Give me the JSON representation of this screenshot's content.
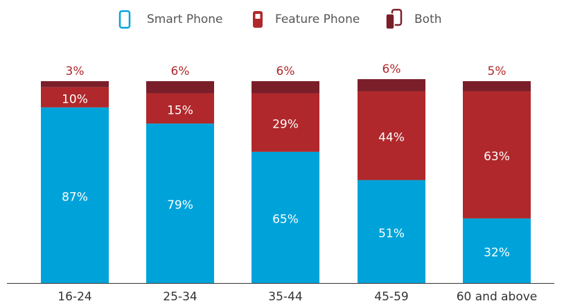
{
  "chart_data": {
    "type": "stacked_bar",
    "categories": [
      "16-24",
      "25-34",
      "35-44",
      "45-59",
      "60 and above"
    ],
    "ylim": [
      0,
      100
    ],
    "series": [
      {
        "name": "Smart Phone",
        "color": "#00a3d9",
        "values": [
          87,
          79,
          65,
          51,
          32
        ],
        "value_labels": [
          "87%",
          "79%",
          "65%",
          "51%",
          "32%"
        ]
      },
      {
        "name": "Feature Phone",
        "color": "#b0282b",
        "values": [
          10,
          15,
          29,
          44,
          63
        ],
        "value_labels": [
          "10%",
          "15%",
          "29%",
          "44%",
          "63%"
        ]
      },
      {
        "name": "Both",
        "color": "#7a1f2a",
        "values": [
          3,
          6,
          6,
          6,
          5
        ],
        "value_labels": [
          "3%",
          "6%",
          "6%",
          "6%",
          "5%"
        ]
      }
    ]
  }
}
